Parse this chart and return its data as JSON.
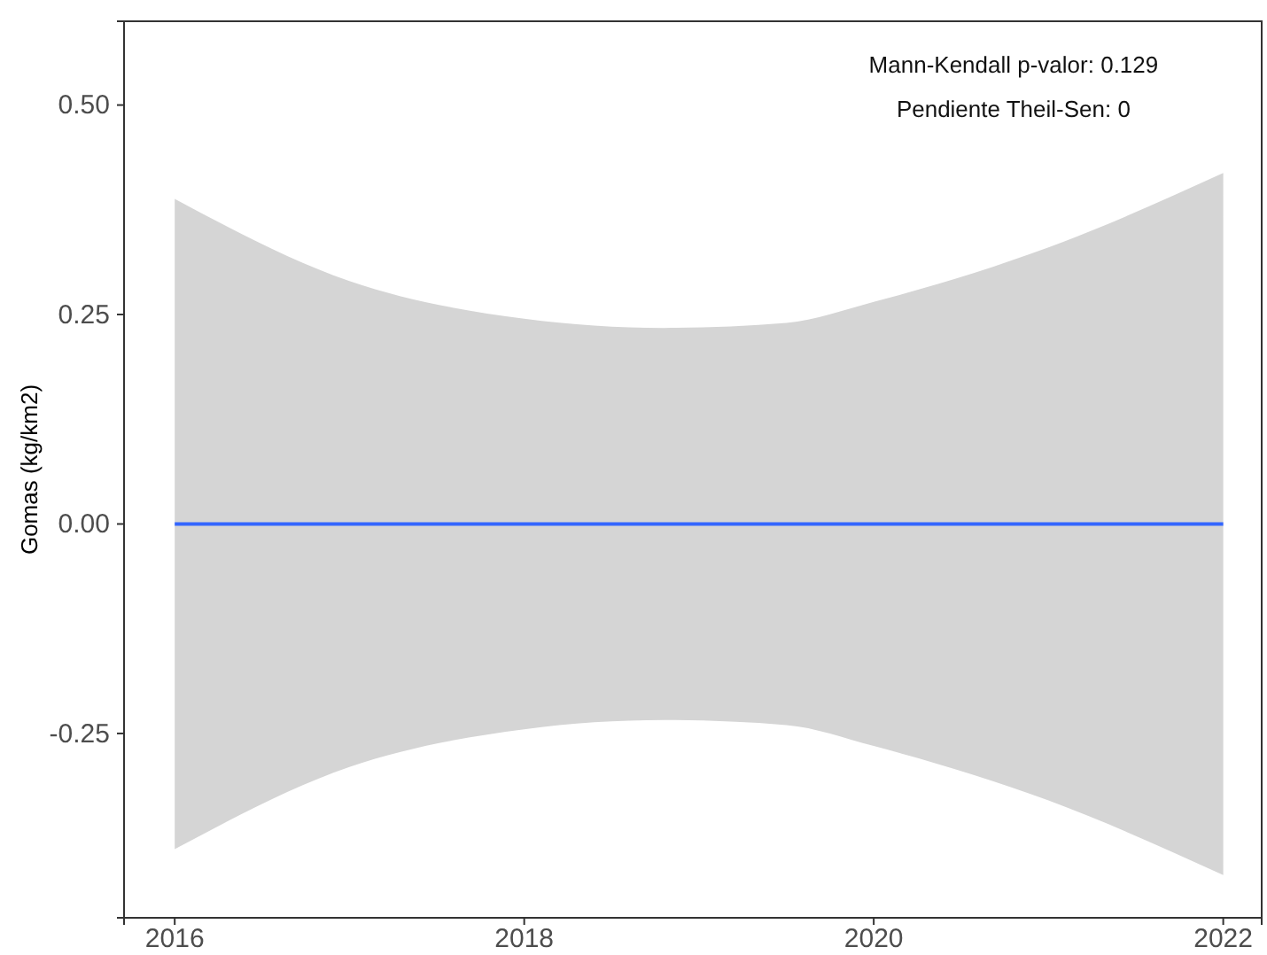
{
  "chart_data": {
    "type": "line",
    "ylabel": "Gomas (kg/km2)",
    "annotations": [
      "Mann-Kendall p-valor: 0.129",
      "Pendiente Theil-Sen: 0"
    ],
    "x": [
      2016,
      2017,
      2018,
      2018.8,
      2019.5,
      2020,
      2021,
      2022
    ],
    "series": [
      {
        "color": "#3366ff",
        "values": [
          0,
          0,
          0,
          0,
          0,
          0,
          0,
          0
        ],
        "lower": [
          -0.388,
          -0.29,
          -0.245,
          -0.234,
          -0.24,
          -0.265,
          -0.33,
          -0.419
        ],
        "upper": [
          0.388,
          0.29,
          0.245,
          0.234,
          0.24,
          0.265,
          0.33,
          0.419
        ]
      }
    ],
    "xlim": [
      2015.71,
      2022.22
    ],
    "xticks": [
      2016,
      2018,
      2020,
      2022
    ],
    "ylim": [
      -0.47,
      0.6
    ],
    "yticks": [
      {
        "value": -0.25,
        "label": "-0.25"
      },
      {
        "value": 0,
        "label": "0.00"
      },
      {
        "value": 0.25,
        "label": "0.25"
      },
      {
        "value": 0.5,
        "label": "0.50"
      }
    ],
    "grid": false,
    "line_style": "solid",
    "marker": "none"
  }
}
